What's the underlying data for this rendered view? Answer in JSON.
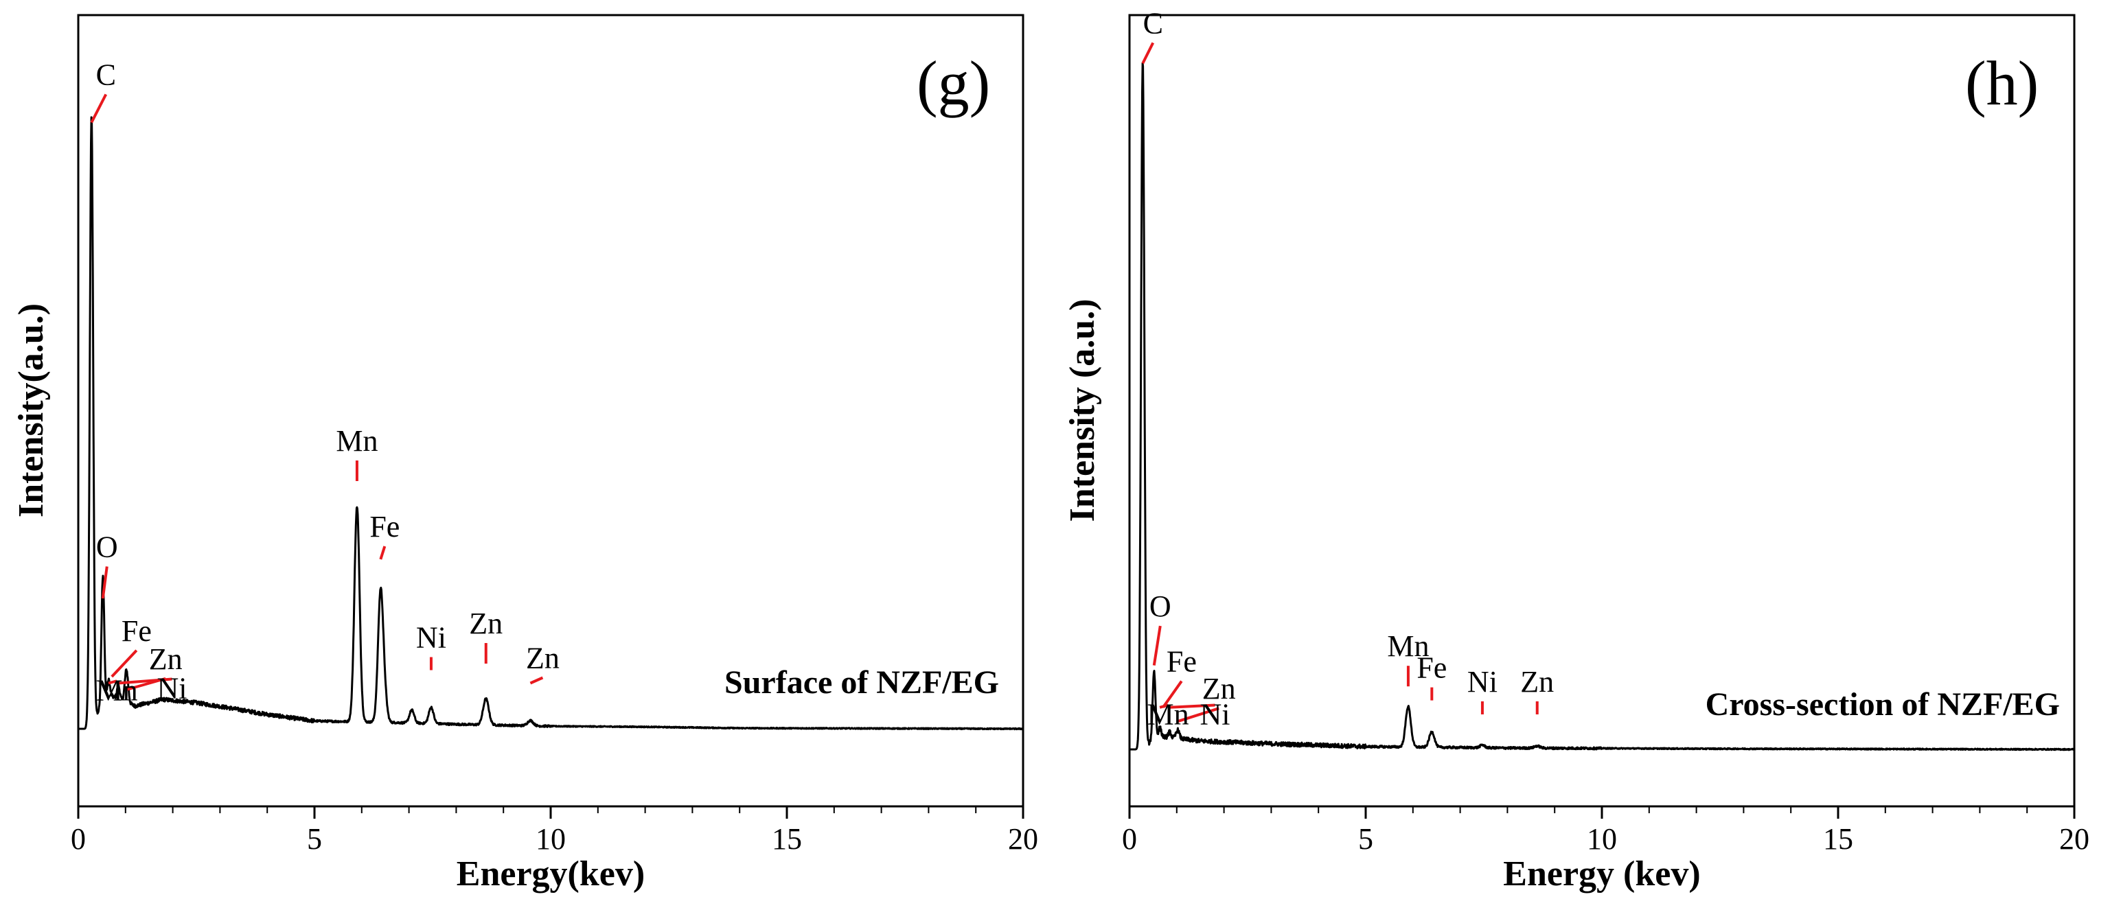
{
  "chart_data": [
    {
      "type": "line",
      "panel_label": "(g)",
      "legend_text": "Surface of NZF/EG",
      "xlabel": "Energy(kev)",
      "ylabel": "Intensity(a.u.)",
      "xlim": [
        0,
        20
      ],
      "ylim": [
        0,
        1.0
      ],
      "xticks": [
        0,
        5,
        10,
        15,
        20
      ],
      "xtick_labels": [
        "0",
        "5",
        "10",
        "15",
        "20"
      ],
      "grid": false,
      "baseline": 0.062,
      "background": [
        [
          0.0,
          0.0
        ],
        [
          0.15,
          0.0
        ],
        [
          0.7,
          0.05
        ],
        [
          1.2,
          0.035
        ],
        [
          1.8,
          0.045
        ],
        [
          2.5,
          0.04
        ],
        [
          3.2,
          0.032
        ],
        [
          4.0,
          0.022
        ],
        [
          5.0,
          0.012
        ],
        [
          6.5,
          0.01
        ],
        [
          8.0,
          0.007
        ],
        [
          10.0,
          0.004
        ],
        [
          12.0,
          0.003
        ],
        [
          14.0,
          0.001
        ],
        [
          20.0,
          0.0
        ]
      ],
      "series": [
        {
          "name": "Surface of NZF/EG",
          "peaks": [
            {
              "element": "C",
              "x": 0.28,
              "height": 0.93,
              "width": 0.035
            },
            {
              "element": "O",
              "x": 0.52,
              "height": 0.2,
              "width": 0.03
            },
            {
              "element": "Mn",
              "x": 0.64,
              "height": 0.03,
              "width": 0.03
            },
            {
              "element": "Ni",
              "x": 0.85,
              "height": 0.02,
              "width": 0.03
            },
            {
              "element": "Zn",
              "x": 1.02,
              "height": 0.05,
              "width": 0.035
            },
            {
              "element": "Mn",
              "x": 5.9,
              "height": 0.33,
              "width": 0.055
            },
            {
              "element": "Fe",
              "x": 6.4,
              "height": 0.2,
              "width": 0.055
            },
            {
              "element": "Mn",
              "x": 6.49,
              "height": 0.03,
              "width": 0.05
            },
            {
              "element": "Fe",
              "x": 7.06,
              "height": 0.02,
              "width": 0.05
            },
            {
              "element": "Ni",
              "x": 7.47,
              "height": 0.025,
              "width": 0.05
            },
            {
              "element": "Zn",
              "x": 8.63,
              "height": 0.04,
              "width": 0.06
            },
            {
              "element": "Zn",
              "x": 9.57,
              "height": 0.008,
              "width": 0.06
            }
          ]
        }
      ],
      "annotations": [
        {
          "text": "C",
          "x": 0.28,
          "y": 0.93
        },
        {
          "text": "O",
          "x": 0.52,
          "y": 0.2
        },
        {
          "text": "Fe",
          "x": 0.71,
          "y": 0.08
        },
        {
          "text": "Zn",
          "x": 1.02,
          "y": 0.06
        },
        {
          "text": "Mn",
          "x": 0.64,
          "y": 0.07
        },
        {
          "text": "Ni",
          "x": 0.85,
          "y": 0.07
        },
        {
          "text": "Mn",
          "x": 5.9,
          "y": 0.38
        },
        {
          "text": "Fe",
          "x": 6.4,
          "y": 0.26
        },
        {
          "text": "Ni",
          "x": 7.47,
          "y": 0.09
        },
        {
          "text": "Zn",
          "x": 8.63,
          "y": 0.1
        },
        {
          "text": "Zn",
          "x": 9.57,
          "y": 0.07
        }
      ]
    },
    {
      "type": "line",
      "panel_label": "(h)",
      "legend_text": "Cross-section of NZF/EG",
      "xlabel": "Energy (kev)",
      "ylabel": "Intensity (a.u.)",
      "xlim": [
        0,
        20
      ],
      "ylim": [
        0,
        1.0
      ],
      "xticks": [
        0,
        5,
        10,
        15,
        20
      ],
      "xtick_labels": [
        "0",
        "5",
        "10",
        "15",
        "20"
      ],
      "grid": false,
      "baseline": 0.058,
      "background": [
        [
          0.0,
          0.0
        ],
        [
          0.15,
          0.0
        ],
        [
          0.7,
          0.018
        ],
        [
          1.5,
          0.012
        ],
        [
          3.0,
          0.008
        ],
        [
          5.0,
          0.004
        ],
        [
          8.0,
          0.002
        ],
        [
          12.0,
          0.001
        ],
        [
          20.0,
          0.0
        ]
      ],
      "series": [
        {
          "name": "Cross-section of NZF/EG",
          "peaks": [
            {
              "element": "C",
              "x": 0.28,
              "height": 0.98,
              "width": 0.035
            },
            {
              "element": "O",
              "x": 0.52,
              "height": 0.1,
              "width": 0.03
            },
            {
              "element": "Mn",
              "x": 0.64,
              "height": 0.015,
              "width": 0.03
            },
            {
              "element": "Ni",
              "x": 0.85,
              "height": 0.008,
              "width": 0.03
            },
            {
              "element": "Zn",
              "x": 1.02,
              "height": 0.012,
              "width": 0.035
            },
            {
              "element": "Mn",
              "x": 5.9,
              "height": 0.058,
              "width": 0.055
            },
            {
              "element": "Fe",
              "x": 6.4,
              "height": 0.022,
              "width": 0.055
            },
            {
              "element": "Ni",
              "x": 7.47,
              "height": 0.004,
              "width": 0.05
            },
            {
              "element": "Zn",
              "x": 8.63,
              "height": 0.003,
              "width": 0.06
            }
          ]
        }
      ],
      "annotations": [
        {
          "text": "C",
          "x": 0.28,
          "y": 0.98
        },
        {
          "text": "O",
          "x": 0.52,
          "y": 0.12
        },
        {
          "text": "Fe",
          "x": 0.71,
          "y": 0.06
        },
        {
          "text": "Zn",
          "x": 1.02,
          "y": 0.04
        },
        {
          "text": "Mn",
          "x": 0.64,
          "y": 0.06
        },
        {
          "text": "Ni",
          "x": 0.85,
          "y": 0.06
        },
        {
          "text": "Mn",
          "x": 5.9,
          "y": 0.09
        },
        {
          "text": "Fe",
          "x": 6.4,
          "y": 0.07
        },
        {
          "text": "Ni",
          "x": 7.47,
          "y": 0.05
        },
        {
          "text": "Zn",
          "x": 8.63,
          "y": 0.05
        }
      ]
    }
  ],
  "colors": {
    "spectrum": "#000000",
    "marker": "#e8191e",
    "axis": "#000000"
  }
}
